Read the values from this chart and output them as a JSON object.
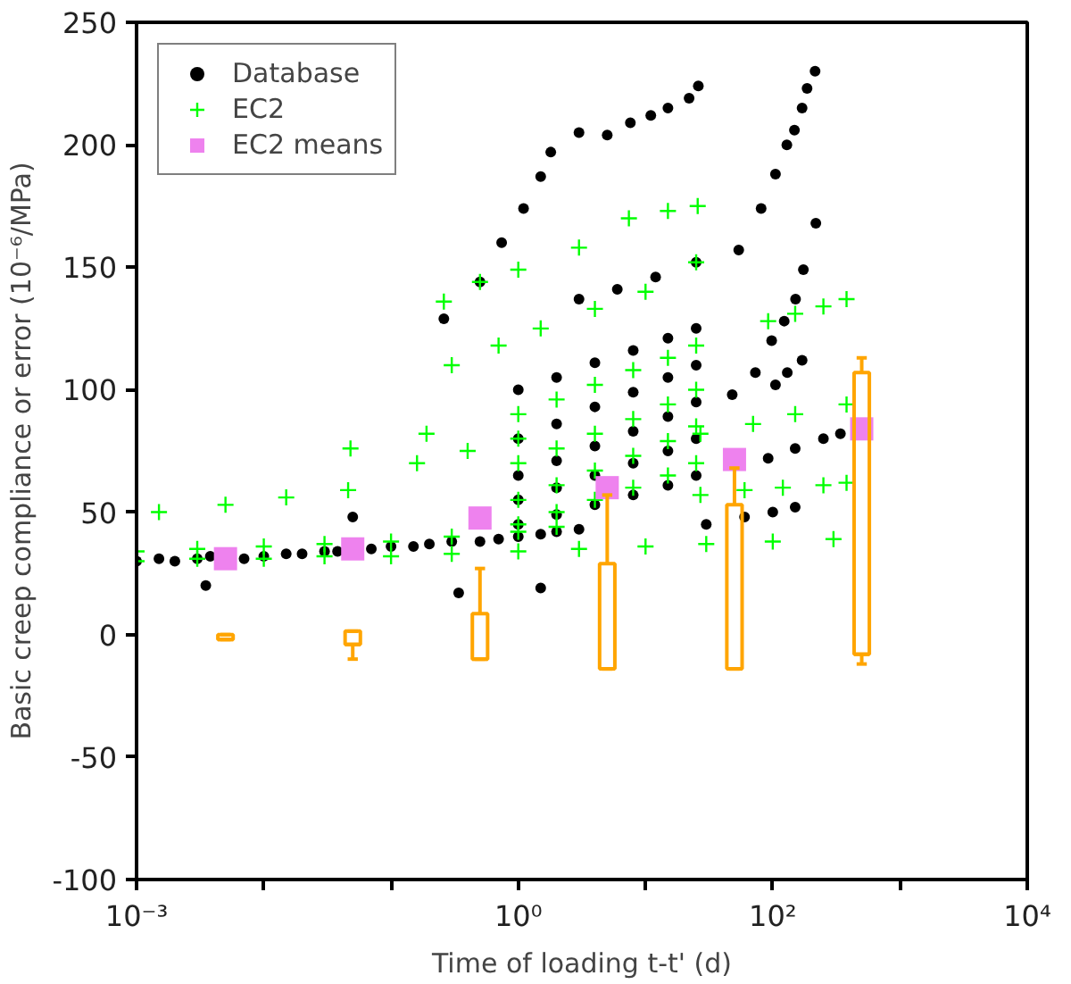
{
  "chart_data": {
    "type": "scatter",
    "xlabel": "Time of loading t-t' (d)",
    "ylabel": "Basic creep compliance or error (10⁻⁶/MPa)",
    "log": "x",
    "grid": false,
    "legend": "top left",
    "xlim": [
      0.001,
      10000
    ],
    "xticks": [
      {
        "value": 0.001,
        "label": "10⁻³"
      },
      {
        "value": 0.01,
        "label": null
      },
      {
        "value": 0.1,
        "label": null
      },
      {
        "value": 1,
        "label": "10⁰"
      },
      {
        "value": 10,
        "label": null
      },
      {
        "value": 100,
        "label": "10²"
      },
      {
        "value": 1000,
        "label": null
      },
      {
        "value": 10000,
        "label": "10⁴"
      }
    ],
    "ylim": [
      -100,
      250
    ],
    "yticks": [
      -100,
      -50,
      0,
      50,
      100,
      150,
      200,
      250
    ],
    "series": [
      {
        "name": "Database",
        "marker": "circle",
        "color": "#000000",
        "x": [
          0.001,
          0.0015,
          0.002,
          0.003,
          0.0038,
          0.007,
          0.01,
          0.015,
          0.02,
          0.03,
          0.038,
          0.07,
          0.1,
          0.15,
          0.2,
          0.3,
          0.5,
          0.7,
          1,
          1.5,
          2,
          3,
          0.0035,
          0.34,
          1.5,
          0.05,
          0.26,
          0.5,
          0.74,
          1.1,
          1.5,
          1.8,
          3,
          5,
          7.6,
          11,
          15,
          22,
          26,
          54,
          81,
          105,
          129,
          148,
          170,
          186,
          215,
          48,
          73,
          98,
          123,
          151,
          174,
          218,
          105,
          130,
          170,
          1,
          2,
          4,
          8,
          15,
          25,
          1,
          2,
          4,
          8,
          15,
          25,
          1,
          2,
          4,
          8,
          15,
          25,
          1,
          2,
          4,
          8,
          15,
          25,
          1,
          2,
          4,
          8,
          15,
          25,
          3,
          6,
          12,
          25,
          30,
          60,
          100,
          150,
          92,
          150,
          250,
          340
        ],
        "values": [
          30,
          31,
          30,
          31,
          32,
          31,
          32,
          33,
          33,
          34,
          34,
          35,
          36,
          36,
          37,
          38,
          38,
          39,
          40,
          41,
          42,
          43,
          20,
          17,
          19,
          48,
          129,
          144,
          160,
          174,
          187,
          197,
          205,
          204,
          209,
          212,
          215,
          219,
          224,
          157,
          174,
          188,
          200,
          206,
          215,
          223,
          230,
          98,
          107,
          120,
          128,
          137,
          149,
          168,
          102,
          107,
          112,
          100,
          105,
          111,
          116,
          121,
          125,
          80,
          86,
          93,
          99,
          105,
          110,
          65,
          71,
          77,
          83,
          89,
          95,
          55,
          60,
          65,
          70,
          75,
          80,
          45,
          49,
          53,
          57,
          61,
          65,
          137,
          141,
          146,
          152,
          45,
          48,
          50,
          52,
          72,
          76,
          80,
          82
        ]
      },
      {
        "name": "EC2",
        "marker": "cross",
        "color": "#00ff00",
        "x": [
          0.001,
          0.003,
          0.01,
          0.03,
          0.1,
          0.3,
          1,
          3,
          10,
          30,
          100,
          300,
          0.001,
          0.003,
          0.01,
          0.03,
          0.1,
          0.3,
          1,
          2,
          0.0015,
          0.005,
          0.015,
          0.046,
          0.16,
          0.4,
          1,
          0.26,
          0.5,
          1.0,
          3.0,
          7.4,
          15,
          25.7,
          0.3,
          0.7,
          1.5,
          4,
          10,
          25,
          92,
          150,
          250,
          380,
          27,
          60,
          120,
          250,
          380,
          27,
          70,
          150,
          380,
          1,
          2,
          4,
          8,
          15,
          25,
          1,
          2,
          4,
          8,
          15,
          25,
          1,
          2,
          4,
          8,
          15,
          25,
          1,
          2,
          4,
          8,
          15,
          25,
          0.048,
          0.19
        ],
        "values": [
          30,
          31,
          31,
          32,
          32,
          33,
          34,
          35,
          36,
          37,
          38,
          39,
          34,
          35,
          36,
          37,
          38,
          40,
          42,
          44,
          50,
          53,
          56,
          59,
          70,
          75,
          80,
          136,
          144,
          149,
          158,
          170,
          173,
          175,
          110,
          118,
          125,
          133,
          140,
          152,
          128,
          131,
          134,
          137,
          57,
          59,
          60,
          61,
          62,
          82,
          86,
          90,
          94,
          90,
          96,
          102,
          108,
          113,
          118,
          70,
          76,
          82,
          88,
          94,
          100,
          55,
          61,
          67,
          73,
          79,
          85,
          45,
          50,
          55,
          60,
          65,
          70,
          76,
          82
        ]
      },
      {
        "name": "EC2 means",
        "marker": "square",
        "color": "#ee82ee",
        "x": [
          0.005,
          0.05,
          0.5,
          5,
          50,
          500
        ],
        "values": [
          31,
          35,
          47.6,
          60,
          71.5,
          84
        ]
      },
      {
        "type": "box",
        "color": "#ffa500",
        "x": [
          0.005,
          0.05,
          0.5,
          5,
          50,
          500
        ],
        "boxes": [
          {
            "low": -2,
            "q1": -2,
            "median": -2,
            "q3": 0,
            "high": 0
          },
          {
            "low": -10,
            "q1": -4,
            "median": -4,
            "q3": 1.4,
            "high": 1.4
          },
          {
            "low": -10,
            "q1": -10,
            "median": -10,
            "q3": 8.6,
            "high": 27
          },
          {
            "low": -14,
            "q1": -14,
            "median": -14,
            "q3": 29,
            "high": 57
          },
          {
            "low": -14,
            "q1": -14,
            "median": -14,
            "q3": 53,
            "high": 68
          },
          {
            "low": -12,
            "q1": -8,
            "median": -8,
            "q3": 107,
            "high": 113
          }
        ]
      }
    ]
  }
}
